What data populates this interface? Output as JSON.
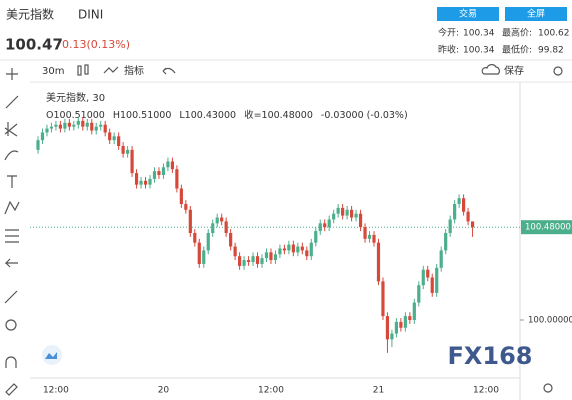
{
  "header": {
    "name": "美元指数",
    "symbol": "DINI",
    "price": "100.47",
    "change": "0.13(0.13%)",
    "buttons": [
      "交易",
      "全屏"
    ],
    "stats": [
      {
        "label": "今开:",
        "value": "100.34"
      },
      {
        "label": "最高价:",
        "value": "100.62"
      },
      {
        "label": "昨收:",
        "value": "100.34"
      },
      {
        "label": "最低价:",
        "value": "99.82"
      }
    ]
  },
  "toolbar": {
    "interval": "30m",
    "indicators": "指标",
    "save": "保存"
  },
  "chart_data": {
    "type": "candlestick",
    "legend": "美元指数, 30",
    "ohlc_text": [
      "O100.51000",
      "H100.51000",
      "L100.43000",
      "收=100.48000",
      "-0.03000 (-0.03%)"
    ],
    "categories": [
      null,
      null,
      null,
      null,
      "12:00",
      null,
      null,
      null,
      null,
      null,
      null,
      null,
      null,
      null,
      null,
      null,
      null,
      null,
      null,
      null,
      null,
      null,
      null,
      null,
      null,
      null,
      null,
      null,
      "20",
      null,
      null,
      null,
      null,
      null,
      null,
      null,
      null,
      null,
      null,
      null,
      null,
      null,
      null,
      null,
      null,
      null,
      null,
      null,
      null,
      null,
      null,
      null,
      "12:00",
      null,
      null,
      null,
      null,
      null,
      null,
      null,
      null,
      null,
      null,
      null,
      null,
      null,
      null,
      null,
      null,
      null,
      null,
      null,
      null,
      null,
      null,
      null,
      "21",
      null,
      null,
      null,
      null,
      null,
      null,
      null,
      null,
      null,
      null,
      null,
      null,
      null,
      null,
      null,
      null,
      null,
      null,
      null,
      null,
      null,
      null,
      null,
      "12:00"
    ],
    "open": [
      100.88,
      100.93,
      100.97,
      100.99,
      101.0,
      101.01,
      100.99,
      101.02,
      101.0,
      101.01,
      101.03,
      101.0,
      101.02,
      100.98,
      101.0,
      101.01,
      100.97,
      100.93,
      100.95,
      100.9,
      100.86,
      100.88,
      100.76,
      100.7,
      100.72,
      100.7,
      100.73,
      100.77,
      100.75,
      100.79,
      100.82,
      100.78,
      100.68,
      100.6,
      100.57,
      100.45,
      100.4,
      100.29,
      100.36,
      100.45,
      100.5,
      100.53,
      100.51,
      100.45,
      100.38,
      100.33,
      100.28,
      100.31,
      100.3,
      100.33,
      100.29,
      100.32,
      100.35,
      100.31,
      100.34,
      100.37,
      100.36,
      100.39,
      100.35,
      100.38,
      100.36,
      100.33,
      100.4,
      100.46,
      100.5,
      100.48,
      100.52,
      100.55,
      100.58,
      100.54,
      100.57,
      100.53,
      100.55,
      100.48,
      100.42,
      100.44,
      100.4,
      100.2,
      100.02,
      99.9,
      99.93,
      99.99,
      99.96,
      100.02,
      100.0,
      100.09,
      100.18,
      100.26,
      100.22,
      100.14,
      100.27,
      100.36,
      100.45,
      100.52,
      100.6,
      100.63,
      100.56,
      100.51,
      null,
      null,
      null
    ],
    "high": [
      100.95,
      100.99,
      101.01,
      101.02,
      101.03,
      101.03,
      101.04,
      101.04,
      101.03,
      101.05,
      101.05,
      101.04,
      101.04,
      101.02,
      101.03,
      101.03,
      100.99,
      100.97,
      100.97,
      100.92,
      100.9,
      100.9,
      100.78,
      100.74,
      100.74,
      100.75,
      100.79,
      100.79,
      100.81,
      100.84,
      100.84,
      100.8,
      100.7,
      100.62,
      100.59,
      100.47,
      100.42,
      100.38,
      100.47,
      100.52,
      100.55,
      100.55,
      100.53,
      100.47,
      100.4,
      100.35,
      100.33,
      100.33,
      100.35,
      100.35,
      100.34,
      100.37,
      100.37,
      100.36,
      100.39,
      100.39,
      100.41,
      100.41,
      100.4,
      100.4,
      100.38,
      100.42,
      100.48,
      100.52,
      100.52,
      100.54,
      100.57,
      100.6,
      100.6,
      100.59,
      100.59,
      100.57,
      100.57,
      100.5,
      100.46,
      100.46,
      100.42,
      100.22,
      100.04,
      99.95,
      100.01,
      100.01,
      100.04,
      100.04,
      100.11,
      100.2,
      100.28,
      100.28,
      100.24,
      100.29,
      100.38,
      100.47,
      100.54,
      100.62,
      100.65,
      100.65,
      100.58,
      100.51,
      null,
      null,
      null
    ],
    "low": [
      100.86,
      100.91,
      100.95,
      100.97,
      100.98,
      100.97,
      100.97,
      100.98,
      100.98,
      100.99,
      100.98,
      100.98,
      100.96,
      100.96,
      100.98,
      100.95,
      100.91,
      100.91,
      100.88,
      100.84,
      100.84,
      100.74,
      100.68,
      100.68,
      100.68,
      100.68,
      100.71,
      100.73,
      100.73,
      100.77,
      100.76,
      100.66,
      100.58,
      100.55,
      100.43,
      100.38,
      100.27,
      100.27,
      100.34,
      100.43,
      100.48,
      100.49,
      100.43,
      100.36,
      100.31,
      100.26,
      100.26,
      100.28,
      100.28,
      100.27,
      100.27,
      100.3,
      100.29,
      100.29,
      100.32,
      100.34,
      100.34,
      100.33,
      100.33,
      100.34,
      100.31,
      100.31,
      100.38,
      100.44,
      100.46,
      100.46,
      100.5,
      100.53,
      100.52,
      100.52,
      100.51,
      100.51,
      100.46,
      100.4,
      100.4,
      100.38,
      100.18,
      100.0,
      99.83,
      99.86,
      99.91,
      99.94,
      99.94,
      99.98,
      99.98,
      100.07,
      100.16,
      100.2,
      100.12,
      100.12,
      100.25,
      100.34,
      100.43,
      100.5,
      100.58,
      100.54,
      100.49,
      100.43,
      null,
      null,
      null
    ],
    "close": [
      100.93,
      100.97,
      100.99,
      101.0,
      101.01,
      100.99,
      101.02,
      101.0,
      101.01,
      101.03,
      101.0,
      101.02,
      100.98,
      101.0,
      101.01,
      100.97,
      100.93,
      100.95,
      100.9,
      100.86,
      100.88,
      100.76,
      100.7,
      100.72,
      100.7,
      100.73,
      100.77,
      100.75,
      100.79,
      100.82,
      100.78,
      100.68,
      100.6,
      100.57,
      100.45,
      100.4,
      100.29,
      100.36,
      100.45,
      100.5,
      100.53,
      100.51,
      100.45,
      100.38,
      100.33,
      100.28,
      100.31,
      100.3,
      100.33,
      100.29,
      100.32,
      100.35,
      100.31,
      100.34,
      100.37,
      100.36,
      100.39,
      100.35,
      100.38,
      100.36,
      100.33,
      100.4,
      100.46,
      100.5,
      100.48,
      100.52,
      100.55,
      100.58,
      100.54,
      100.57,
      100.53,
      100.55,
      100.48,
      100.42,
      100.44,
      100.4,
      100.2,
      100.02,
      99.9,
      99.93,
      99.99,
      99.96,
      100.02,
      100.0,
      100.09,
      100.18,
      100.26,
      100.22,
      100.14,
      100.27,
      100.36,
      100.45,
      100.52,
      100.6,
      100.63,
      100.56,
      100.51,
      100.48,
      null,
      null,
      null
    ],
    "last_price": {
      "value": 100.48,
      "label": "100.48000"
    },
    "ylim": [
      99.7,
      101.2
    ],
    "yticks": [
      {
        "value": 100,
        "label": "100.00000"
      }
    ],
    "up_color": "#4caf8c",
    "down_color": "#d6483a",
    "watermark": "FX168"
  }
}
